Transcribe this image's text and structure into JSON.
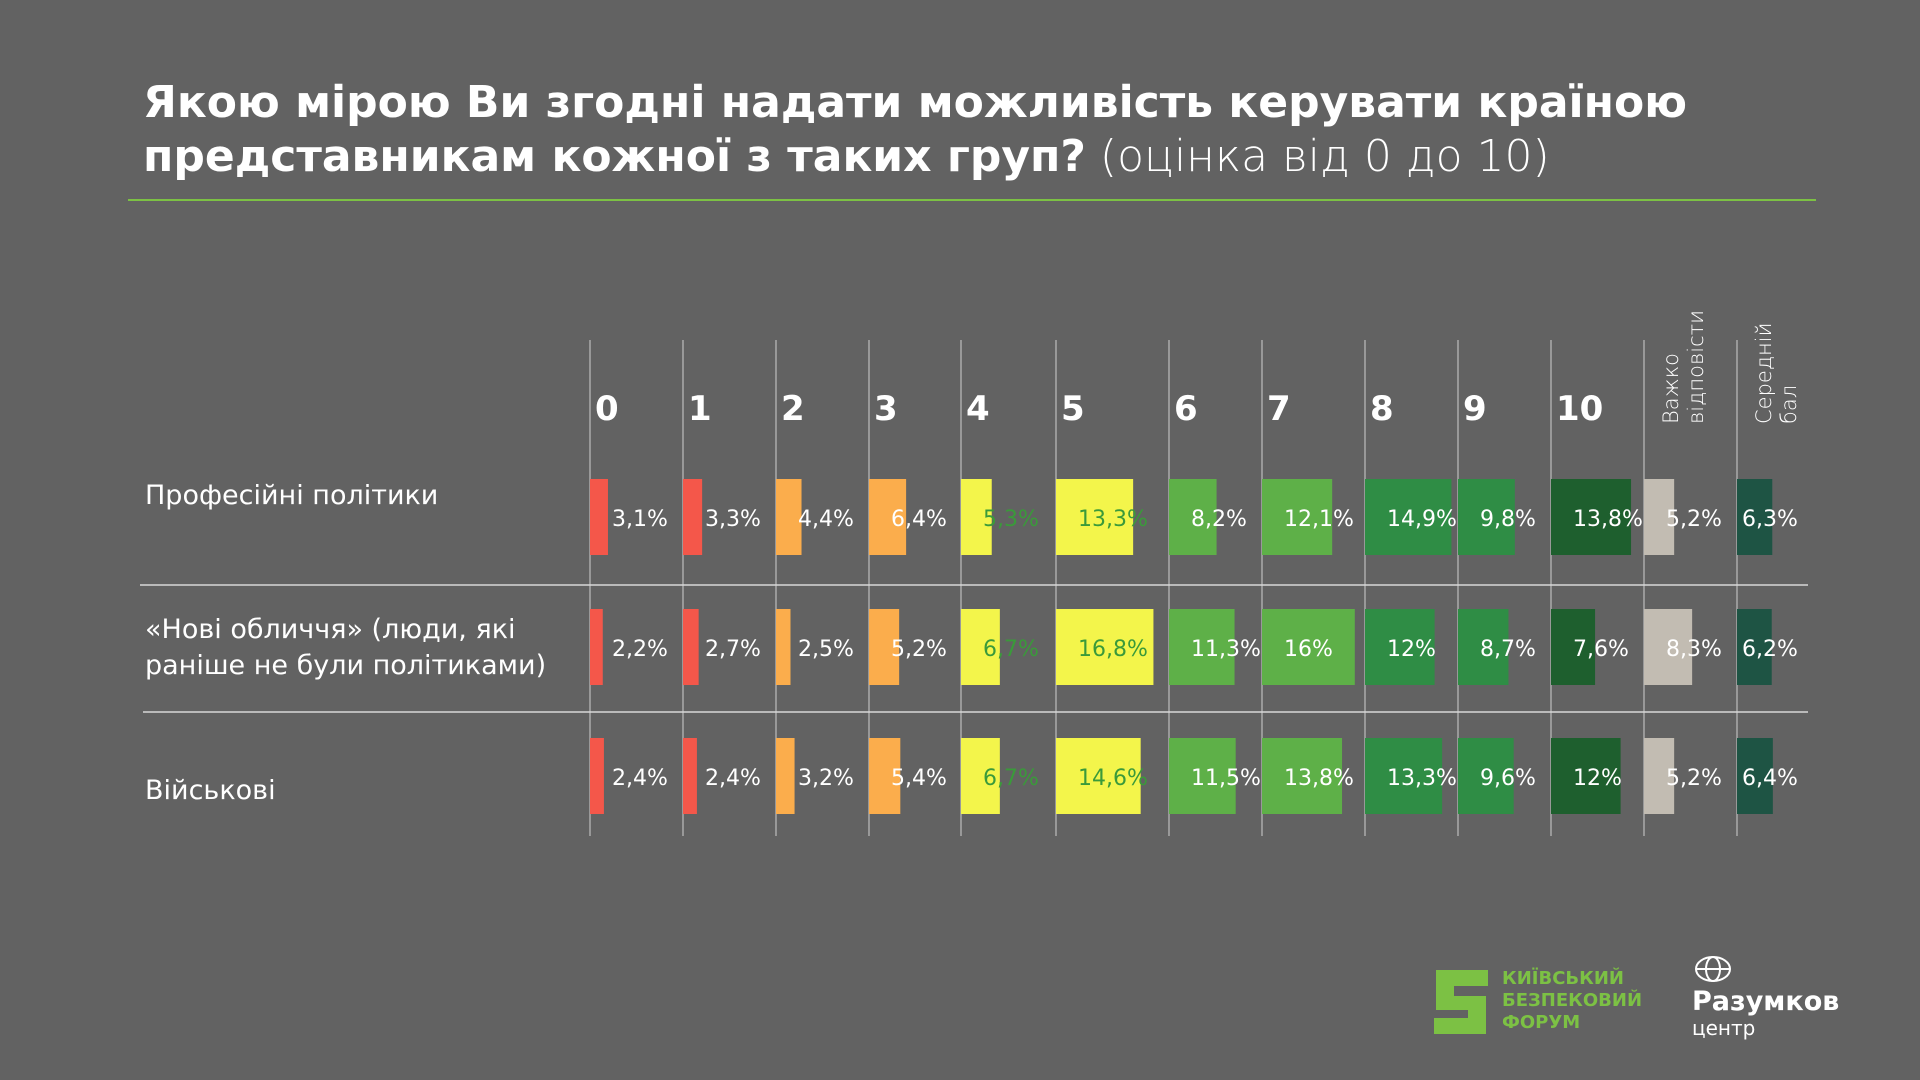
{
  "title": {
    "main": "Якою мірою Ви згодні надати можливість керувати країною представникам кожної з таких груп?",
    "suffix": " (оцінка від 0 до 10)"
  },
  "chart_data": {
    "type": "table",
    "title": "Якою мірою Ви згодні надати можливість керувати країною представникам кожної з таких груп? (оцінка від 0 до 10)",
    "columns": [
      "0",
      "1",
      "2",
      "3",
      "4",
      "5",
      "6",
      "7",
      "8",
      "9",
      "10",
      "Важко відповісти",
      "Середній бал"
    ],
    "column_colors": [
      "#f4574a",
      "#f4574a",
      "#fbad4c",
      "#fbad4c",
      "#f3f54b",
      "#f3f54b",
      "#5eb048",
      "#5eb048",
      "#2f8d45",
      "#2f8d45",
      "#1e5f2e",
      "#c2bcb2",
      "#1e5444"
    ],
    "rows": [
      {
        "label": "Професійні політики",
        "values": [
          3.1,
          3.3,
          4.4,
          6.4,
          5.3,
          13.3,
          8.2,
          12.1,
          14.9,
          9.8,
          13.8,
          5.2
        ],
        "labels": [
          "3,1%",
          "3,3%",
          "4,4%",
          "6,4%",
          "5,3%",
          "13,3%",
          "8,2%",
          "12,1%",
          "14,9%",
          "9,8%",
          "13,8%",
          "5,2%"
        ],
        "mean": 6.3,
        "mean_label": "6,3%"
      },
      {
        "label": "«Нові обличчя» (люди, які раніше не були політиками)",
        "values": [
          2.2,
          2.7,
          2.5,
          5.2,
          6.7,
          16.8,
          11.3,
          16,
          12,
          8.7,
          7.6,
          8.3
        ],
        "labels": [
          "2,2%",
          "2,7%",
          "2,5%",
          "5,2%",
          "6,7%",
          "16,8%",
          "11,3%",
          "16%",
          "12%",
          "8,7%",
          "7,6%",
          "8,3%"
        ],
        "mean": 6.2,
        "mean_label": "6,2%"
      },
      {
        "label": "Військові",
        "values": [
          2.4,
          2.4,
          3.2,
          5.4,
          6.7,
          14.6,
          11.5,
          13.8,
          13.3,
          9.6,
          12,
          5.2
        ],
        "labels": [
          "2,4%",
          "2,4%",
          "3,2%",
          "5,4%",
          "6,7%",
          "14,6%",
          "11,5%",
          "13,8%",
          "13,3%",
          "9,6%",
          "12%",
          "5,2%"
        ],
        "mean": 6.4,
        "mean_label": "6,4%"
      }
    ],
    "unit": "%"
  },
  "logos": {
    "kbf": "КИЇВСЬКИЙ\nБЕЗПЕКОВИЙ\nФОРУМ",
    "razumkov_name": "Разумков",
    "razumkov_sub": "центр"
  }
}
